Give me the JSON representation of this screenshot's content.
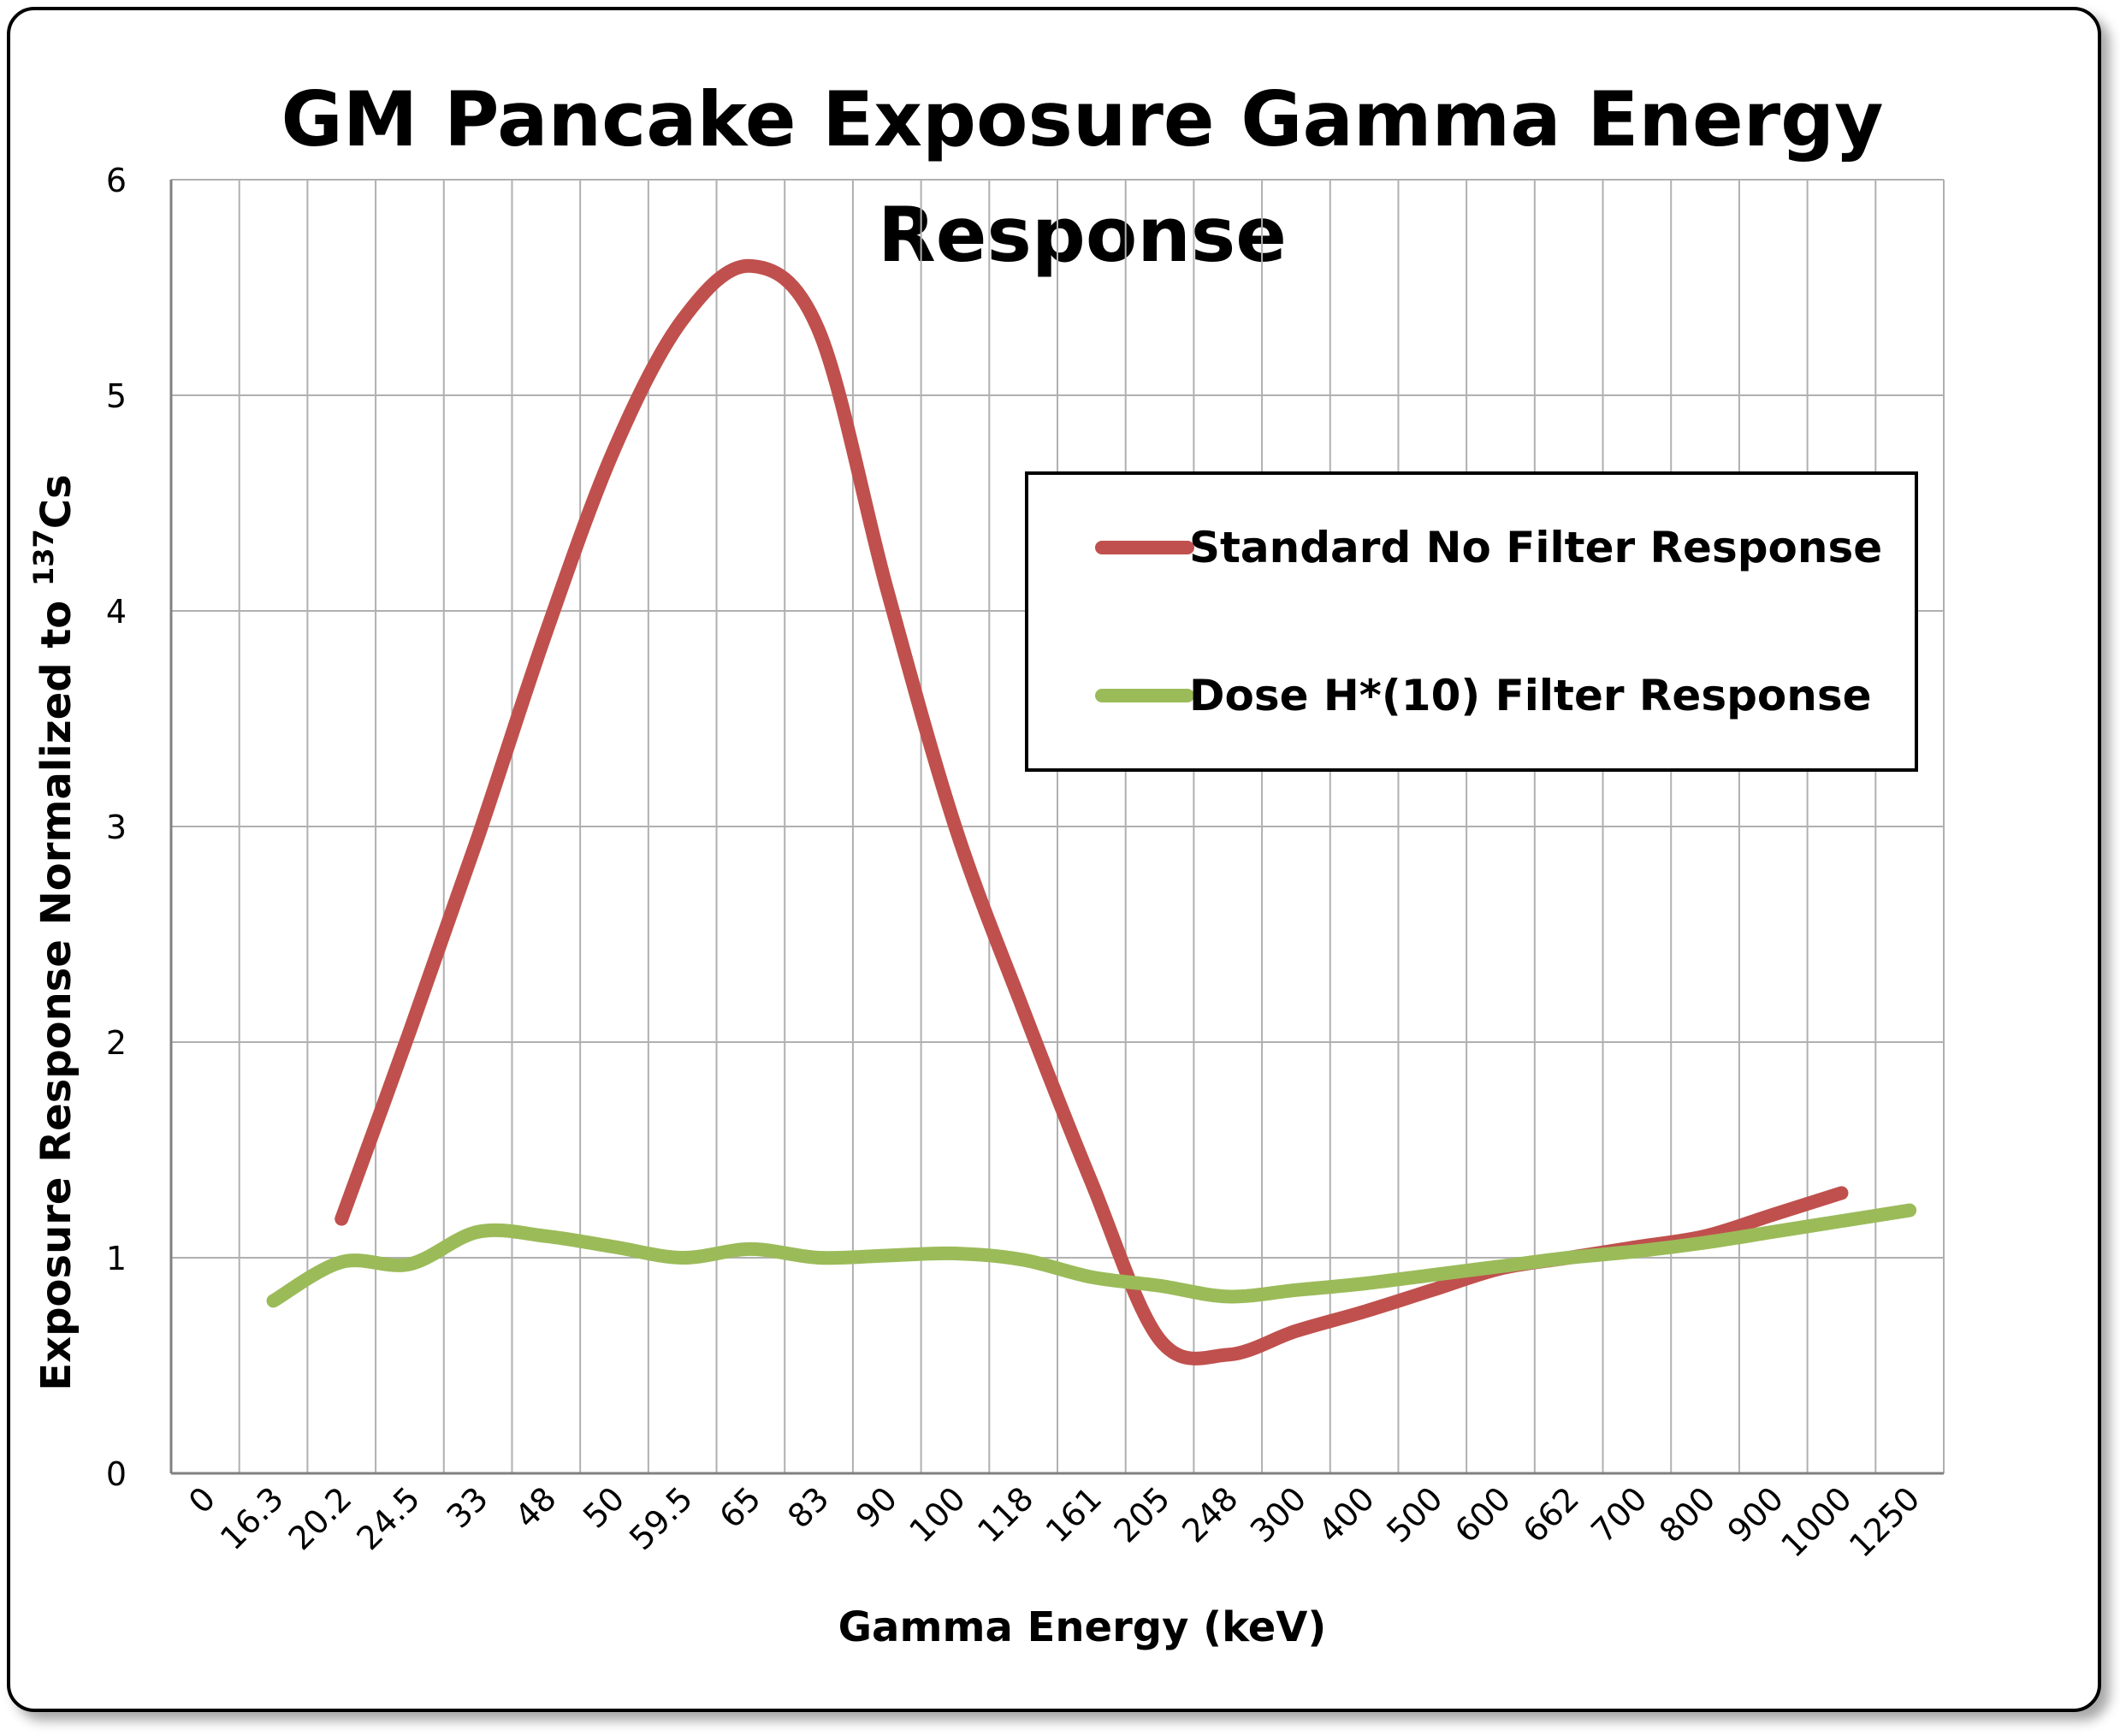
{
  "chart_data": {
    "type": "line",
    "title_line1": "GM Pancake Exposure Gamma Energy",
    "title_line2": "Response",
    "xlabel": "Gamma Energy (keV)",
    "ylabel_main": "Exposure Response Normalized to ",
    "ylabel_sup": "137",
    "ylabel_end": "Cs",
    "categories": [
      "0",
      "16.3",
      "20.2",
      "24.5",
      "33",
      "48",
      "50",
      "59.5",
      "65",
      "83",
      "90",
      "100",
      "118",
      "161",
      "205",
      "248",
      "300",
      "400",
      "500",
      "600",
      "662",
      "700",
      "800",
      "900",
      "1000",
      "1250"
    ],
    "ylim": [
      0,
      6
    ],
    "yticks": [
      "0",
      "1",
      "2",
      "3",
      "4",
      "5",
      "6"
    ],
    "grid": true,
    "legend_position": "right",
    "series": [
      {
        "name": "Standard No Filter Response",
        "color": "#c0504d",
        "values": [
          null,
          null,
          1.18,
          2.05,
          2.95,
          3.9,
          4.75,
          5.35,
          5.6,
          5.3,
          4.1,
          3.0,
          2.15,
          1.35,
          0.62,
          0.55,
          0.66,
          0.75,
          0.85,
          0.95,
          1.0,
          1.05,
          1.1,
          1.2,
          1.3,
          null
        ]
      },
      {
        "name": "Dose H*(10) Filter Response",
        "color": "#9bbb59",
        "values": [
          null,
          0.8,
          0.98,
          0.97,
          1.12,
          1.1,
          1.05,
          1.0,
          1.04,
          1.0,
          1.01,
          1.02,
          0.99,
          0.91,
          0.87,
          0.82,
          0.85,
          0.88,
          0.92,
          0.96,
          1.0,
          1.03,
          1.07,
          1.12,
          1.17,
          1.22
        ]
      }
    ]
  }
}
